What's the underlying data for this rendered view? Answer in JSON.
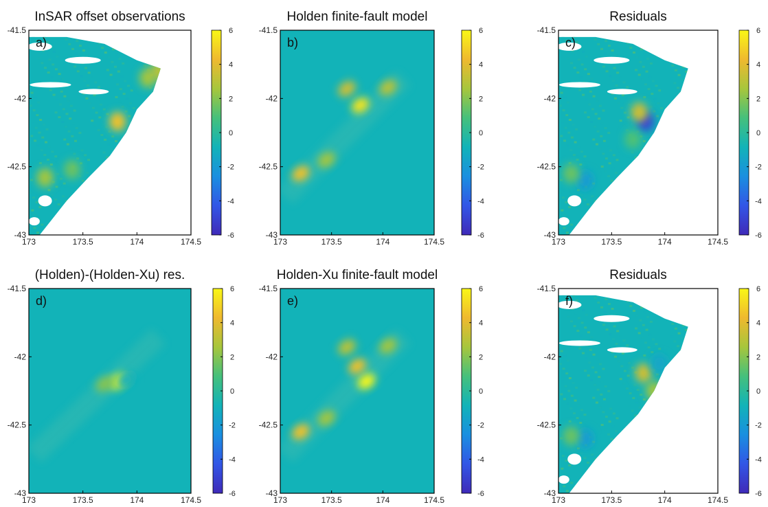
{
  "colors": {
    "background_zero": "#12b3b8",
    "colormap": [
      "#3f2ab8",
      "#3256e6",
      "#1a8fe0",
      "#12b3b8",
      "#45c07c",
      "#a7c63c",
      "#efb92f",
      "#f9f716"
    ]
  },
  "chart_data": [
    {
      "type": "heatmap",
      "panel_label": "a)",
      "title": "InSAR offset observations",
      "xlabel": "",
      "ylabel": "",
      "xlim": [
        173,
        174.5
      ],
      "ylim": [
        -43,
        -41.5
      ],
      "x_ticks": [
        "173",
        "173.5",
        "174",
        "174.5"
      ],
      "y_ticks": [
        "-41.5",
        "-42",
        "-42.5",
        "-43"
      ],
      "colorbar": {
        "range": [
          -6,
          6
        ],
        "ticks": [
          "6",
          "4",
          "2",
          "0",
          "-2",
          "-4",
          "-6"
        ]
      },
      "grid": false,
      "blobs": [
        {
          "x": 173.82,
          "y": -42.17,
          "value": 4.5
        },
        {
          "x": 173.15,
          "y": -42.58,
          "value": 2.5
        },
        {
          "x": 173.4,
          "y": -42.52,
          "value": 1.5
        },
        {
          "x": 174.1,
          "y": -41.85,
          "value": 2.5
        },
        {
          "x": 174.2,
          "y": -41.8,
          "value": 3.0
        }
      ]
    },
    {
      "type": "heatmap",
      "panel_label": "b)",
      "title": "Holden finite-fault model",
      "xlabel": "",
      "ylabel": "",
      "xlim": [
        173,
        174.5
      ],
      "ylim": [
        -43,
        -41.5
      ],
      "x_ticks": [
        "173",
        "173.5",
        "174",
        "174.5"
      ],
      "y_ticks": [
        "-41.5",
        "-42",
        "-42.5",
        "-43"
      ],
      "colorbar": {
        "range": [
          -6,
          6
        ],
        "ticks": [
          "6",
          "4",
          "2",
          "0",
          "-2",
          "-4",
          "-6"
        ]
      },
      "grid": false,
      "blobs": [
        {
          "x": 173.78,
          "y": -42.05,
          "value": 5.5
        },
        {
          "x": 173.65,
          "y": -41.93,
          "value": 3.5
        },
        {
          "x": 174.05,
          "y": -41.92,
          "value": 3.0
        },
        {
          "x": 173.2,
          "y": -42.55,
          "value": 4.5
        },
        {
          "x": 173.45,
          "y": -42.45,
          "value": 2.5
        }
      ]
    },
    {
      "type": "heatmap",
      "panel_label": "c)",
      "title": "Residuals",
      "xlabel": "",
      "ylabel": "",
      "xlim": [
        173,
        174.5
      ],
      "ylim": [
        -43,
        -41.5
      ],
      "x_ticks": [
        "173",
        "173.5",
        "174",
        "174.5"
      ],
      "y_ticks": [
        "-41.5",
        "-42",
        "-42.5",
        "-43"
      ],
      "colorbar": {
        "range": [
          -6,
          6
        ],
        "ticks": [
          "6",
          "4",
          "2",
          "0",
          "-2",
          "-4",
          "-6"
        ]
      },
      "grid": false,
      "blobs": [
        {
          "x": 173.82,
          "y": -42.17,
          "value": -5.0
        },
        {
          "x": 173.76,
          "y": -42.1,
          "value": 3.5
        },
        {
          "x": 173.25,
          "y": -42.6,
          "value": -2.0
        },
        {
          "x": 173.12,
          "y": -42.55,
          "value": 1.5
        },
        {
          "x": 173.7,
          "y": -42.3,
          "value": 1.0
        }
      ]
    },
    {
      "type": "heatmap",
      "panel_label": "d)",
      "title": "(Holden)-(Holden-Xu) res.",
      "xlabel": "",
      "ylabel": "",
      "xlim": [
        173,
        174.5
      ],
      "ylim": [
        -43,
        -41.5
      ],
      "x_ticks": [
        "173",
        "173.5",
        "174",
        "174.5"
      ],
      "y_ticks": [
        "-41.5",
        "-42",
        "-42.5",
        "-43"
      ],
      "colorbar": {
        "range": [
          -6,
          6
        ],
        "ticks": [
          "6",
          "4",
          "2",
          "0",
          "-2",
          "-4",
          "-6"
        ]
      },
      "grid": false,
      "blobs": [
        {
          "x": 173.83,
          "y": -42.18,
          "value": 6.0
        },
        {
          "x": 173.7,
          "y": -42.2,
          "value": 2.0
        },
        {
          "x": 173.9,
          "y": -42.17,
          "value": -1.0
        }
      ]
    },
    {
      "type": "heatmap",
      "panel_label": "e)",
      "title": "Holden-Xu finite-fault model",
      "xlabel": "",
      "ylabel": "",
      "xlim": [
        173,
        174.5
      ],
      "ylim": [
        -43,
        -41.5
      ],
      "x_ticks": [
        "173",
        "173.5",
        "174",
        "174.5"
      ],
      "y_ticks": [
        "-41.5",
        "-42",
        "-42.5",
        "-43"
      ],
      "colorbar": {
        "range": [
          -6,
          6
        ],
        "ticks": [
          "6",
          "4",
          "2",
          "0",
          "-2",
          "-4",
          "-6"
        ]
      },
      "grid": false,
      "blobs": [
        {
          "x": 173.84,
          "y": -42.18,
          "value": 6.0
        },
        {
          "x": 173.75,
          "y": -42.07,
          "value": 4.5
        },
        {
          "x": 173.65,
          "y": -41.93,
          "value": 3.0
        },
        {
          "x": 174.05,
          "y": -41.92,
          "value": 2.5
        },
        {
          "x": 173.2,
          "y": -42.55,
          "value": 4.5
        },
        {
          "x": 173.45,
          "y": -42.45,
          "value": 2.5
        }
      ]
    },
    {
      "type": "heatmap",
      "panel_label": "f)",
      "title": "Residuals",
      "xlabel": "",
      "ylabel": "",
      "xlim": [
        173,
        174.5
      ],
      "ylim": [
        -43,
        -41.5
      ],
      "x_ticks": [
        "173",
        "173.5",
        "174",
        "174.5"
      ],
      "y_ticks": [
        "-41.5",
        "-42",
        "-42.5",
        "-43"
      ],
      "colorbar": {
        "range": [
          -6,
          6
        ],
        "ticks": [
          "6",
          "4",
          "2",
          "0",
          "-2",
          "-4",
          "-6"
        ]
      },
      "grid": false,
      "blobs": [
        {
          "x": 173.8,
          "y": -42.12,
          "value": 3.5
        },
        {
          "x": 173.9,
          "y": -42.25,
          "value": 2.5
        },
        {
          "x": 173.25,
          "y": -42.6,
          "value": -2.0
        },
        {
          "x": 173.95,
          "y": -42.05,
          "value": -1.5
        },
        {
          "x": 173.12,
          "y": -42.58,
          "value": 1.5
        }
      ]
    }
  ]
}
